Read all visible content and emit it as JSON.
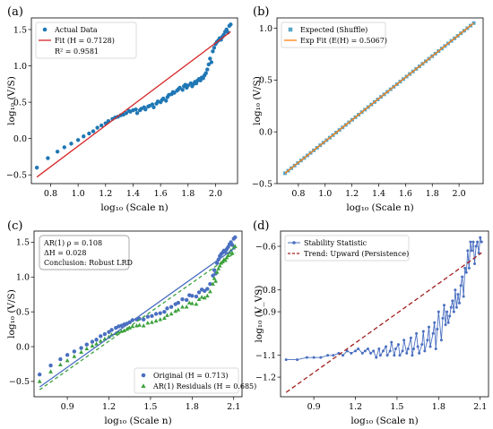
{
  "chart_data": [
    {
      "id": "a",
      "type": "scatter",
      "panel_label": "(a)",
      "xlabel": "log₁₀ (Scale n)",
      "ylabel": "log₁₀ (V/S)",
      "xlim": [
        0.66,
        2.16
      ],
      "ylim": [
        -0.62,
        1.66
      ],
      "xticks": [
        0.8,
        1.0,
        1.2,
        1.4,
        1.6,
        1.8,
        2.0
      ],
      "yticks": [
        -0.5,
        0.0,
        0.5,
        1.0,
        1.5
      ],
      "xtick_labels": [
        "0.8",
        "1.0",
        "1.2",
        "1.4",
        "1.6",
        "1.8",
        "2.0"
      ],
      "ytick_labels": [
        "−0.5",
        "0.0",
        "0.5",
        "1.0",
        "1.5"
      ],
      "legend_position": "top-left",
      "legend": [
        {
          "label": "Actual Data",
          "kind": "dot",
          "color": "#1f77b4"
        },
        {
          "label": "Fit (H = 0.7128)",
          "kind": "line",
          "color": "#d62728"
        },
        {
          "label": "R² = 0.9581",
          "kind": "none"
        }
      ],
      "series": [
        {
          "name": "Actual Data",
          "kind": "scatter",
          "color": "#1f77b4",
          "x": [
            0.7,
            0.78,
            0.85,
            0.9,
            0.95,
            1.0,
            1.04,
            1.08,
            1.11,
            1.14,
            1.17,
            1.2,
            1.22,
            1.25,
            1.27,
            1.29,
            1.31,
            1.33,
            1.35,
            1.37,
            1.38,
            1.4,
            1.42,
            1.43,
            1.45,
            1.46,
            1.48,
            1.49,
            1.51,
            1.52,
            1.54,
            1.55,
            1.57,
            1.58,
            1.6,
            1.61,
            1.62,
            1.64,
            1.65,
            1.66,
            1.68,
            1.69,
            1.7,
            1.72,
            1.73,
            1.74,
            1.76,
            1.77,
            1.78,
            1.79,
            1.8,
            1.82,
            1.83,
            1.84,
            1.85,
            1.86,
            1.87,
            1.88,
            1.89,
            1.9,
            1.91,
            1.92,
            1.93,
            1.94,
            1.95,
            1.96,
            1.97,
            1.98,
            1.99,
            2.0,
            2.01,
            2.02,
            2.03,
            2.04,
            2.05,
            2.06,
            2.07,
            2.08,
            2.09,
            2.1,
            2.11
          ],
          "y": [
            -0.4,
            -0.27,
            -0.18,
            -0.12,
            -0.07,
            -0.02,
            0.03,
            0.07,
            0.1,
            0.15,
            0.18,
            0.21,
            0.24,
            0.27,
            0.29,
            0.3,
            0.32,
            0.33,
            0.35,
            0.38,
            0.37,
            0.39,
            0.4,
            0.35,
            0.39,
            0.41,
            0.43,
            0.4,
            0.44,
            0.45,
            0.47,
            0.43,
            0.48,
            0.51,
            0.5,
            0.53,
            0.55,
            0.52,
            0.57,
            0.6,
            0.61,
            0.64,
            0.63,
            0.66,
            0.68,
            0.7,
            0.67,
            0.72,
            0.74,
            0.7,
            0.73,
            0.76,
            0.72,
            0.75,
            0.78,
            0.76,
            0.8,
            0.82,
            0.8,
            0.84,
            0.83,
            0.87,
            0.9,
            0.95,
            1.02,
            1.1,
            1.05,
            1.2,
            1.25,
            1.3,
            1.33,
            1.35,
            1.38,
            1.36,
            1.4,
            1.43,
            1.47,
            1.5,
            1.46,
            1.55,
            1.57
          ]
        },
        {
          "name": "Fit (H = 0.7128)",
          "kind": "line",
          "color": "#d62728",
          "x": [
            0.7,
            2.11
          ],
          "y": [
            -0.53,
            1.47
          ]
        }
      ]
    },
    {
      "id": "b",
      "type": "scatter",
      "panel_label": "(b)",
      "xlabel": "log₁₀ (Scale n)",
      "ylabel": "log₁₀ (V/S)",
      "xlim": [
        0.64,
        2.18
      ],
      "ylim": [
        -0.5,
        1.1
      ],
      "xticks": [
        0.8,
        1.0,
        1.2,
        1.4,
        1.6,
        1.8,
        2.0
      ],
      "yticks": [
        -0.5,
        0.0,
        0.5,
        1.0
      ],
      "xtick_labels": [
        "0.8",
        "1.0",
        "1.2",
        "1.4",
        "1.6",
        "1.8",
        "2.0"
      ],
      "ytick_labels": [
        "−0.5",
        "0.0",
        "0.5",
        "1.0"
      ],
      "legend_position": "top-left",
      "legend": [
        {
          "label": "Expected (Shuffle)",
          "kind": "square",
          "color": "#5aa6c6"
        },
        {
          "label": "Exp Fit (E(H) = 0.5067)",
          "kind": "line",
          "color": "#ff7f0e"
        }
      ],
      "series": [
        {
          "name": "Expected (Shuffle)",
          "kind": "scatter-square",
          "color": "#5aa6c6",
          "x_start": 0.7,
          "x_end": 2.11,
          "n": 60,
          "y_start": -0.4,
          "y_end": 1.05
        },
        {
          "name": "Exp Fit (E(H) = 0.5067)",
          "kind": "line",
          "color": "#ff7f0e",
          "x": [
            0.7,
            2.11
          ],
          "y": [
            -0.4,
            1.05
          ]
        }
      ]
    },
    {
      "id": "c",
      "type": "scatter",
      "panel_label": "(c)",
      "xlabel": "log₁₀ (Scale n)",
      "ylabel": "log₁₀ (V/S)",
      "xlim": [
        0.66,
        2.16
      ],
      "ylim": [
        -0.72,
        1.66
      ],
      "xticks": [
        0.9,
        1.2,
        1.5,
        1.8,
        2.1
      ],
      "yticks": [
        -0.5,
        0.0,
        0.5,
        1.0,
        1.5
      ],
      "xtick_labels": [
        "0.9",
        "1.2",
        "1.5",
        "1.8",
        "2.1"
      ],
      "ytick_labels": [
        "−0.5",
        "0.0",
        "0.5",
        "1.0",
        "1.5"
      ],
      "annotation": [
        "AR(1) ρ = 0.108",
        "ΔH = 0.028",
        "Conclusion: Robust LRD"
      ],
      "legend_position": "bottom-right",
      "legend": [
        {
          "label": "Original (H = 0.713)",
          "kind": "dot",
          "color": "#4a6fc0"
        },
        {
          "label": "AR(1) Residuals (H = 0.685)",
          "kind": "triangle",
          "color": "#3ca13c"
        }
      ],
      "series": [
        {
          "name": "Original (H = 0.713)",
          "kind": "scatter",
          "color": "#4a6fc0",
          "x": [
            0.7,
            0.78,
            0.85,
            0.9,
            0.95,
            1.0,
            1.04,
            1.08,
            1.11,
            1.14,
            1.17,
            1.2,
            1.22,
            1.25,
            1.27,
            1.29,
            1.31,
            1.33,
            1.35,
            1.37,
            1.4,
            1.42,
            1.45,
            1.48,
            1.51,
            1.54,
            1.57,
            1.6,
            1.62,
            1.65,
            1.68,
            1.7,
            1.73,
            1.76,
            1.78,
            1.8,
            1.83,
            1.85,
            1.87,
            1.89,
            1.91,
            1.93,
            1.95,
            1.96,
            1.97,
            1.98,
            1.99,
            2.0,
            2.01,
            2.02,
            2.03,
            2.04,
            2.05,
            2.06,
            2.07,
            2.08,
            2.09,
            2.1,
            2.11
          ],
          "y": [
            -0.4,
            -0.27,
            -0.18,
            -0.12,
            -0.07,
            -0.02,
            0.03,
            0.07,
            0.1,
            0.15,
            0.18,
            0.21,
            0.24,
            0.27,
            0.29,
            0.3,
            0.32,
            0.33,
            0.35,
            0.38,
            0.39,
            0.4,
            0.39,
            0.43,
            0.44,
            0.47,
            0.48,
            0.5,
            0.55,
            0.57,
            0.61,
            0.63,
            0.68,
            0.67,
            0.74,
            0.73,
            0.72,
            0.78,
            0.82,
            0.8,
            0.83,
            0.9,
            1.02,
            1.1,
            1.05,
            1.2,
            1.25,
            1.3,
            1.33,
            1.35,
            1.38,
            1.36,
            1.4,
            1.43,
            1.47,
            1.5,
            1.46,
            1.55,
            1.57
          ]
        },
        {
          "name": "AR(1) Residuals (H = 0.685)",
          "kind": "scatter-triangle",
          "color": "#3ca13c",
          "x": [
            0.7,
            0.78,
            0.85,
            0.9,
            0.95,
            1.0,
            1.04,
            1.08,
            1.11,
            1.14,
            1.17,
            1.2,
            1.22,
            1.25,
            1.27,
            1.29,
            1.31,
            1.33,
            1.35,
            1.37,
            1.4,
            1.42,
            1.45,
            1.48,
            1.51,
            1.54,
            1.57,
            1.6,
            1.62,
            1.65,
            1.68,
            1.7,
            1.73,
            1.76,
            1.78,
            1.8,
            1.83,
            1.85,
            1.87,
            1.89,
            1.91,
            1.93,
            1.95,
            1.96,
            1.97,
            1.98,
            1.99,
            2.0,
            2.01,
            2.02,
            2.03,
            2.04,
            2.05,
            2.06,
            2.07,
            2.08,
            2.09,
            2.1,
            2.11
          ],
          "y": [
            -0.5,
            -0.36,
            -0.26,
            -0.2,
            -0.14,
            -0.08,
            -0.03,
            0.01,
            0.04,
            0.08,
            0.11,
            0.14,
            0.17,
            0.19,
            0.21,
            0.22,
            0.23,
            0.25,
            0.27,
            0.29,
            0.3,
            0.31,
            0.3,
            0.34,
            0.35,
            0.37,
            0.39,
            0.41,
            0.45,
            0.47,
            0.51,
            0.53,
            0.57,
            0.57,
            0.63,
            0.62,
            0.61,
            0.68,
            0.71,
            0.7,
            0.73,
            0.79,
            0.9,
            0.98,
            0.94,
            1.07,
            1.12,
            1.16,
            1.2,
            1.22,
            1.25,
            1.24,
            1.28,
            1.31,
            1.35,
            1.38,
            1.34,
            1.42,
            1.44
          ]
        },
        {
          "name": "",
          "kind": "line",
          "color": "#4a6fc0",
          "dash": "",
          "x": [
            0.7,
            2.11
          ],
          "y": [
            -0.58,
            1.42
          ]
        },
        {
          "name": "",
          "kind": "line",
          "color": "#3ca13c",
          "dash": "4,3",
          "x": [
            0.7,
            2.11
          ],
          "y": [
            -0.62,
            1.35
          ]
        }
      ]
    },
    {
      "id": "d",
      "type": "line",
      "panel_label": "(d)",
      "xlabel": "log₁₀ (Scale n)",
      "ylabel": "log₁₀ (V_VS)",
      "xlim": [
        0.66,
        2.16
      ],
      "ylim": [
        -1.29,
        -0.53
      ],
      "xticks": [
        0.9,
        1.2,
        1.5,
        1.8,
        2.1
      ],
      "yticks": [
        -1.2,
        -1.1,
        -0.9,
        -0.8,
        -0.6
      ],
      "xtick_labels": [
        "0.9",
        "1.2",
        "1.5",
        "1.8",
        "2.1"
      ],
      "ytick_labels": [
        "−1.2",
        "−1.1",
        "−0.9",
        "−0.8",
        "−0.6"
      ],
      "legend_position": "top-left",
      "legend": [
        {
          "label": "Stability Statistic",
          "kind": "line-dot",
          "color": "#4a6fc0"
        },
        {
          "label": "Trend: Upward (Persistence)",
          "kind": "dash",
          "color": "#a31f1f"
        }
      ],
      "series": [
        {
          "name": "Stability Statistic",
          "kind": "line-dot",
          "color": "#4a6fc0",
          "x": [
            0.7,
            0.78,
            0.85,
            0.9,
            0.95,
            1.0,
            1.04,
            1.08,
            1.11,
            1.14,
            1.17,
            1.2,
            1.22,
            1.25,
            1.27,
            1.29,
            1.31,
            1.33,
            1.35,
            1.37,
            1.38,
            1.4,
            1.42,
            1.43,
            1.45,
            1.46,
            1.48,
            1.49,
            1.51,
            1.52,
            1.54,
            1.55,
            1.57,
            1.58,
            1.6,
            1.61,
            1.62,
            1.64,
            1.65,
            1.66,
            1.68,
            1.69,
            1.7,
            1.72,
            1.73,
            1.74,
            1.76,
            1.77,
            1.78,
            1.79,
            1.8,
            1.82,
            1.83,
            1.84,
            1.85,
            1.86,
            1.87,
            1.88,
            1.89,
            1.9,
            1.91,
            1.92,
            1.93,
            1.94,
            1.95,
            1.96,
            1.97,
            1.98,
            1.99,
            2.0,
            2.01,
            2.02,
            2.03,
            2.04,
            2.05,
            2.06,
            2.07,
            2.08,
            2.09,
            2.1,
            2.11
          ],
          "y": [
            -1.12,
            -1.12,
            -1.11,
            -1.11,
            -1.11,
            -1.1,
            -1.1,
            -1.09,
            -1.1,
            -1.08,
            -1.09,
            -1.08,
            -1.07,
            -1.09,
            -1.08,
            -1.07,
            -1.09,
            -1.08,
            -1.11,
            -1.07,
            -1.1,
            -1.08,
            -1.06,
            -1.1,
            -1.08,
            -1.04,
            -1.1,
            -1.07,
            -1.05,
            -1.1,
            -1.08,
            -1.03,
            -1.09,
            -1.07,
            -1.02,
            -1.1,
            -1.07,
            -1.0,
            -1.06,
            -1.09,
            -1.05,
            -0.99,
            -1.08,
            -1.03,
            -0.97,
            -1.06,
            -1.0,
            -0.95,
            -1.07,
            -0.98,
            -0.9,
            -1.03,
            -0.93,
            -0.87,
            -0.96,
            -0.9,
            -0.95,
            -0.92,
            -0.88,
            -0.85,
            -0.9,
            -0.8,
            -0.88,
            -0.82,
            -0.86,
            -0.78,
            -0.74,
            -0.83,
            -0.7,
            -0.72,
            -0.62,
            -0.7,
            -0.58,
            -0.62,
            -0.58,
            -0.68,
            -0.6,
            -0.58,
            -0.63,
            -0.56,
            -0.58
          ]
        },
        {
          "name": "Trend: Upward (Persistence)",
          "kind": "line",
          "color": "#a31f1f",
          "dash": "5,3",
          "x": [
            0.7,
            2.11
          ],
          "y": [
            -1.27,
            -0.63
          ]
        }
      ]
    }
  ]
}
